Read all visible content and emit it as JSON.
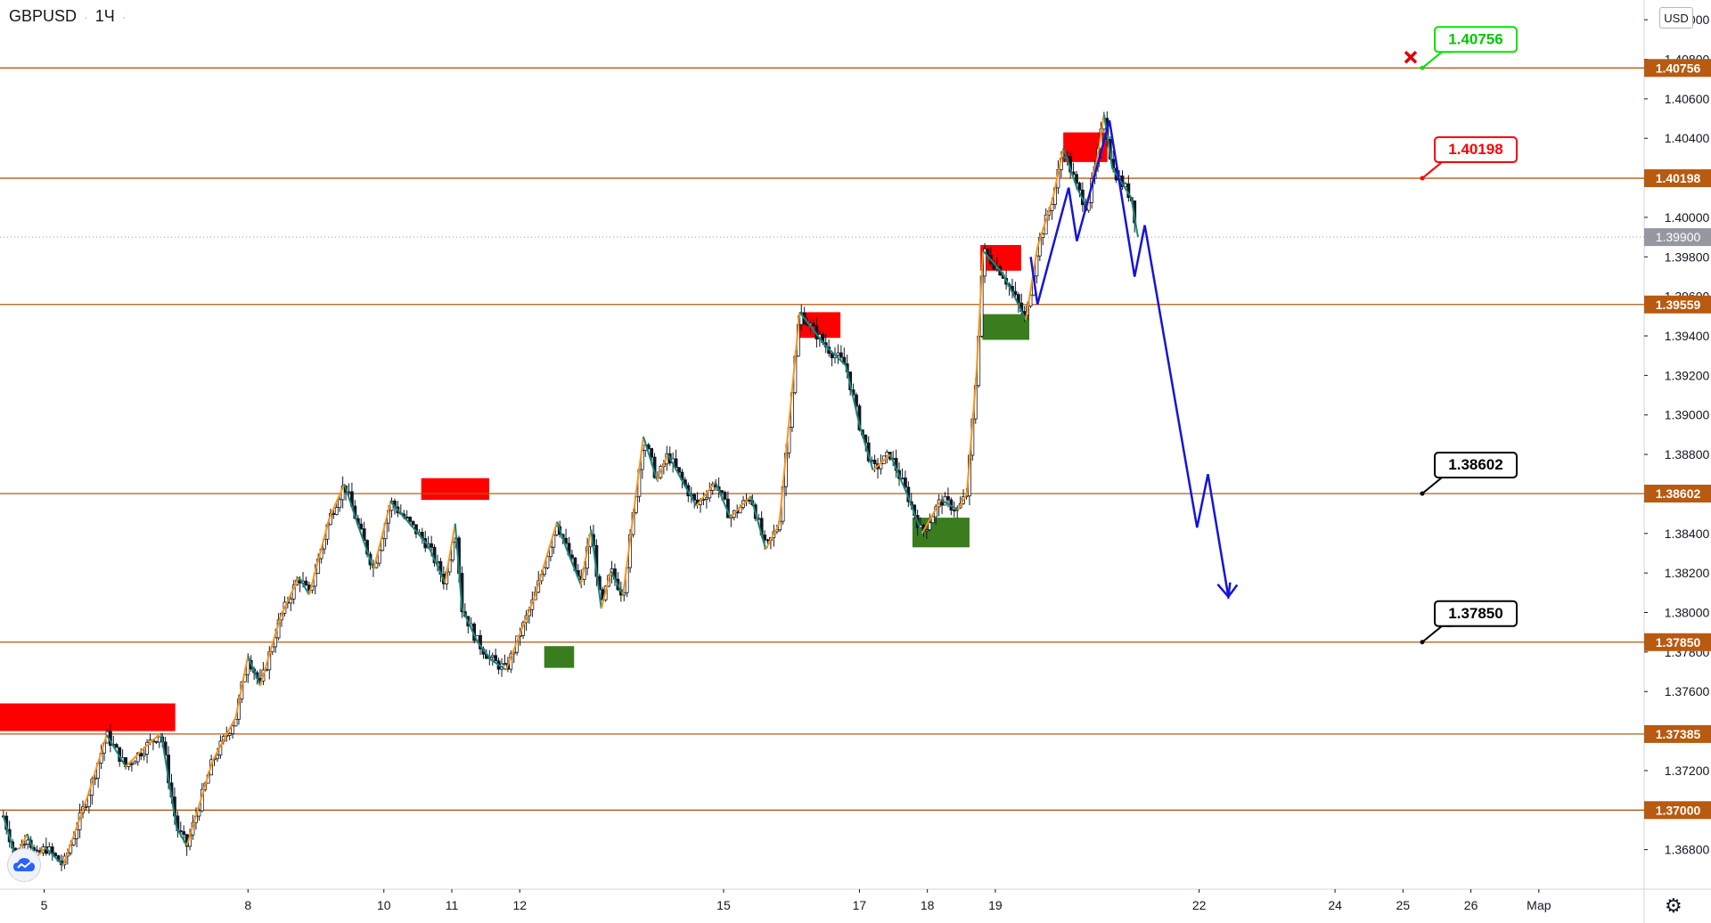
{
  "header": {
    "symbol": "GBPUSD",
    "timeframe": "1Ч",
    "separator": "·"
  },
  "currency_button": "USD",
  "colors": {
    "level_line": "#b85a10",
    "level_label_bg": "#b85a10",
    "zigzag_up": "#f7931a",
    "zigzag_down": "#17867a",
    "resistance_zone": "#ff0000",
    "support_zone": "#3a7d1e",
    "forecast": "#1515d6",
    "current_price_bg": "#9598a1",
    "grid": "#e0e3eb",
    "candle": "#131722"
  },
  "icons": {
    "logo": "tradingview-cloud-icon",
    "settings": "gear-icon",
    "cancel": "x-mark-icon"
  },
  "chart_data": {
    "type": "candlestick",
    "title": "GBPUSD · 1Ч",
    "y_axis": {
      "min": 1.366,
      "max": 1.411,
      "ticks": [
        "1.36800",
        "1.37000",
        "1.37200",
        "1.37400",
        "1.37600",
        "1.37800",
        "1.38000",
        "1.38200",
        "1.38400",
        "1.38600",
        "1.38800",
        "1.39000",
        "1.39200",
        "1.39400",
        "1.39600",
        "1.39800",
        "1.40000",
        "1.40200",
        "1.40400",
        "1.40600",
        "1.40800",
        "1.41000"
      ]
    },
    "x_axis": {
      "ticks": [
        {
          "label": "5",
          "x": 5.0
        },
        {
          "label": "8",
          "x": 8.0
        },
        {
          "label": "10",
          "x": 10.0
        },
        {
          "label": "11",
          "x": 11.0
        },
        {
          "label": "12",
          "x": 12.0
        },
        {
          "label": "15",
          "x": 15.0
        },
        {
          "label": "17",
          "x": 17.0
        },
        {
          "label": "18",
          "x": 18.0
        },
        {
          "label": "19",
          "x": 19.0
        },
        {
          "label": "22",
          "x": 22.0
        },
        {
          "label": "24",
          "x": 24.0
        },
        {
          "label": "25",
          "x": 25.0
        },
        {
          "label": "26",
          "x": 26.0
        },
        {
          "label": "Мар",
          "x": 27.0
        }
      ],
      "min": 4.35,
      "max": 28.55
    },
    "current_price": "1.39900",
    "horizontal_levels": [
      {
        "label": "1.40756",
        "price": 1.40756
      },
      {
        "label": "1.40198",
        "price": 1.40198
      },
      {
        "label": "1.39559",
        "price": 1.39559
      },
      {
        "label": "1.38602",
        "price": 1.38602
      },
      {
        "label": "1.37850",
        "price": 1.3785
      },
      {
        "label": "1.37385",
        "price": 1.37385
      },
      {
        "label": "1.37000",
        "price": 1.37
      }
    ],
    "callouts": [
      {
        "label": "1.40756",
        "price": 1.40756,
        "style": "target-hit"
      },
      {
        "label": "1.40198",
        "price": 1.40198,
        "style": "target-red"
      },
      {
        "label": "1.38602",
        "price": 1.38602,
        "style": "target"
      },
      {
        "label": "1.37850",
        "price": 1.3785,
        "style": "target"
      }
    ],
    "zones": [
      {
        "type": "resistance",
        "x": [
          4.35,
          6.93
        ],
        "price": [
          1.374,
          1.3754
        ]
      },
      {
        "type": "resistance",
        "x": [
          10.55,
          11.55
        ],
        "price": [
          1.3857,
          1.3868
        ]
      },
      {
        "type": "resistance",
        "x": [
          16.12,
          16.72
        ],
        "price": [
          1.3939,
          1.3952
        ]
      },
      {
        "type": "resistance",
        "x": [
          18.78,
          19.38
        ],
        "price": [
          1.3973,
          1.3986
        ]
      },
      {
        "type": "resistance",
        "x": [
          20.0,
          20.65
        ],
        "price": [
          1.4028,
          1.4043
        ]
      },
      {
        "type": "support",
        "x": [
          12.36,
          12.8
        ],
        "price": [
          1.3772,
          1.3783
        ]
      },
      {
        "type": "support",
        "x": [
          17.78,
          18.62
        ],
        "price": [
          1.3833,
          1.3848
        ]
      },
      {
        "type": "support",
        "x": [
          18.81,
          19.5
        ],
        "price": [
          1.3938,
          1.3951
        ]
      }
    ],
    "zigzag": [
      {
        "x": 4.4,
        "y": 1.3697
      },
      {
        "x": 4.58,
        "y": 1.3676
      },
      {
        "x": 4.75,
        "y": 1.3688
      },
      {
        "x": 4.88,
        "y": 1.3676
      },
      {
        "x": 5.02,
        "y": 1.3681
      },
      {
        "x": 5.28,
        "y": 1.3672
      },
      {
        "x": 5.64,
        "y": 1.3707
      },
      {
        "x": 5.92,
        "y": 1.3738
      },
      {
        "x": 6.2,
        "y": 1.3722
      },
      {
        "x": 6.52,
        "y": 1.3733
      },
      {
        "x": 6.72,
        "y": 1.3739
      },
      {
        "x": 6.95,
        "y": 1.3691
      },
      {
        "x": 7.1,
        "y": 1.3682
      },
      {
        "x": 7.48,
        "y": 1.3725
      },
      {
        "x": 7.82,
        "y": 1.3747
      },
      {
        "x": 8.0,
        "y": 1.3778
      },
      {
        "x": 8.18,
        "y": 1.3763
      },
      {
        "x": 8.48,
        "y": 1.3798
      },
      {
        "x": 8.75,
        "y": 1.3818
      },
      {
        "x": 8.9,
        "y": 1.3809
      },
      {
        "x": 9.2,
        "y": 1.3848
      },
      {
        "x": 9.42,
        "y": 1.3865
      },
      {
        "x": 9.62,
        "y": 1.3844
      },
      {
        "x": 9.85,
        "y": 1.3822
      },
      {
        "x": 10.1,
        "y": 1.3856
      },
      {
        "x": 10.38,
        "y": 1.3845
      },
      {
        "x": 10.65,
        "y": 1.3834
      },
      {
        "x": 10.9,
        "y": 1.3815
      },
      {
        "x": 11.05,
        "y": 1.3845
      },
      {
        "x": 11.15,
        "y": 1.3802
      },
      {
        "x": 11.38,
        "y": 1.3785
      },
      {
        "x": 11.58,
        "y": 1.3776
      },
      {
        "x": 11.8,
        "y": 1.3771
      },
      {
        "x": 12.0,
        "y": 1.3789
      },
      {
        "x": 12.22,
        "y": 1.3808
      },
      {
        "x": 12.55,
        "y": 1.3846
      },
      {
        "x": 12.68,
        "y": 1.3833
      },
      {
        "x": 12.9,
        "y": 1.3814
      },
      {
        "x": 13.05,
        "y": 1.3842
      },
      {
        "x": 13.2,
        "y": 1.3802
      },
      {
        "x": 13.34,
        "y": 1.3821
      },
      {
        "x": 13.52,
        "y": 1.3809
      },
      {
        "x": 13.82,
        "y": 1.3889
      },
      {
        "x": 14.02,
        "y": 1.3867
      },
      {
        "x": 14.18,
        "y": 1.388
      },
      {
        "x": 14.4,
        "y": 1.3866
      },
      {
        "x": 14.6,
        "y": 1.3854
      },
      {
        "x": 14.88,
        "y": 1.3866
      },
      {
        "x": 15.1,
        "y": 1.3848
      },
      {
        "x": 15.4,
        "y": 1.3859
      },
      {
        "x": 15.62,
        "y": 1.3832
      },
      {
        "x": 15.82,
        "y": 1.3845
      },
      {
        "x": 16.12,
        "y": 1.3952
      }
    ],
    "forecast_path": [
      {
        "x": 19.52,
        "y": 1.398
      },
      {
        "x": 19.62,
        "y": 1.3956
      },
      {
        "x": 20.08,
        "y": 1.4015
      },
      {
        "x": 20.2,
        "y": 1.3988
      },
      {
        "x": 20.68,
        "y": 1.4049
      },
      {
        "x": 21.05,
        "y": 1.397
      },
      {
        "x": 21.2,
        "y": 1.3996
      },
      {
        "x": 21.97,
        "y": 1.3843
      },
      {
        "x": 22.13,
        "y": 1.387
      },
      {
        "x": 22.43,
        "y": 1.3808
      },
      {
        "x": 22.56,
        "y": 1.3814
      }
    ]
  }
}
